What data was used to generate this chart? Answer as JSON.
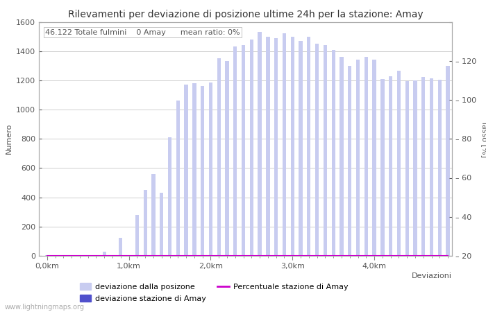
{
  "title": "Rilevamenti per deviazione di posizione ultime 24h per la stazione: Amay",
  "subtitle": "46.122 Totale fulmini    0 Amay      mean ratio: 0%",
  "ylabel_left": "Numero",
  "ylabel_right": "Tasso [%]",
  "xlabel": "Deviazioni",
  "bar_color_light": "#c8ccf0",
  "bar_color_dark": "#5050cc",
  "line_color": "#cc00cc",
  "background_color": "#ffffff",
  "grid_color": "#bbbbbb",
  "ylim_left": [
    0,
    1600
  ],
  "ylim_right": [
    0,
    120
  ],
  "bar_values": [
    5,
    5,
    5,
    5,
    5,
    5,
    5,
    30,
    5,
    125,
    5,
    280,
    450,
    560,
    430,
    810,
    1060,
    1170,
    1180,
    1160,
    1185,
    1350,
    1330,
    1430,
    1440,
    1480,
    1530,
    1500,
    1490,
    1520,
    1500,
    1470,
    1500,
    1450,
    1440,
    1410,
    1360,
    1300,
    1340,
    1360,
    1340,
    1210,
    1230,
    1265,
    1195,
    1200,
    1225,
    1215,
    1205,
    1300
  ],
  "bar_station_values": [
    0,
    0,
    0,
    0,
    0,
    0,
    0,
    0,
    0,
    0,
    0,
    0,
    0,
    0,
    0,
    0,
    0,
    0,
    0,
    0,
    0,
    0,
    0,
    0,
    0,
    0,
    0,
    0,
    0,
    0,
    0,
    0,
    0,
    0,
    0,
    0,
    0,
    0,
    0,
    0,
    0,
    0,
    0,
    0,
    0,
    0,
    0,
    0,
    0,
    0
  ],
  "percent_values": [
    0,
    0,
    0,
    0,
    0,
    0,
    0,
    0,
    0,
    0,
    0,
    0,
    0,
    0,
    0,
    0,
    0,
    0,
    0,
    0,
    0,
    0,
    0,
    0,
    0,
    0,
    0,
    0,
    0,
    0,
    0,
    0,
    0,
    0,
    0,
    0,
    0,
    0,
    0,
    0,
    0,
    0,
    0,
    0,
    0,
    0,
    0,
    0,
    0,
    0
  ],
  "n_bars": 50,
  "km_tick_positions": [
    0,
    10,
    20,
    30,
    40
  ],
  "km_tick_labels": [
    "0,0km",
    "1,0km",
    "2,0km",
    "3,0km",
    "4,0km"
  ],
  "title_fontsize": 10,
  "axis_fontsize": 8,
  "tick_fontsize": 8,
  "legend_fontsize": 8,
  "subtitle_fontsize": 8,
  "watermark": "www.lightningmaps.org",
  "watermark_fontsize": 7,
  "figsize": [
    7.0,
    4.5
  ],
  "dpi": 100
}
